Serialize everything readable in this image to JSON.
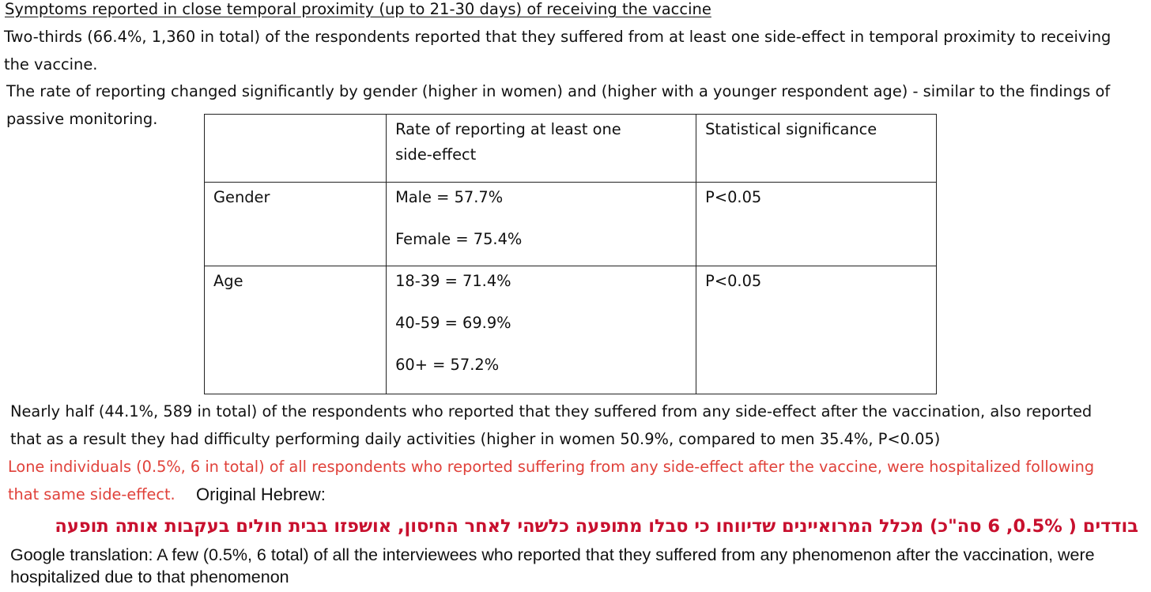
{
  "heading": "Symptoms reported in close temporal proximity (up to 21-30 days) of receiving the vaccine",
  "para1": {
    "line1": "Two-thirds (66.4%, 1,360 in total) of the respondents reported that they suffered from at least one side-effect in temporal proximity to receiving",
    "line2": "the vaccine."
  },
  "para2": {
    "line1": "The rate of reporting changed significantly by gender (higher in women) and (higher with a younger respondent age) - similar to the findings of",
    "line2": "passive monitoring."
  },
  "table": {
    "headers": [
      "",
      "Rate of reporting at least one side-effect",
      "Statistical significance"
    ],
    "header_rate_lines": [
      "Rate of reporting at least one",
      "side-effect"
    ],
    "rows": [
      {
        "label": "Gender",
        "rates": [
          "Male = 57.7%",
          "Female = 75.4%"
        ],
        "significance": "P<0.05"
      },
      {
        "label": "Age",
        "rates": [
          "18-39 = 71.4%",
          "40-59 = 69.9%",
          "60+ = 57.2%"
        ],
        "significance": "P<0.05"
      }
    ]
  },
  "para3": {
    "line1": "Nearly half (44.1%, 589 in total) of the respondents who reported that they suffered from any side-effect after the vaccination, also reported",
    "line2": "that as a result they had difficulty performing daily activities (higher in women 50.9%, compared to men 35.4%, P<0.05)"
  },
  "para4": {
    "line1": "Lone individuals (0.5%, 6 in total) of all respondents who reported suffering from any side-effect after the vaccine, were hospitalized following",
    "line2": "that same side-effect."
  },
  "original_label": "Original Hebrew:",
  "hebrew_text": "בודדים ( 0.5%, 6 סה\"כ) מכלל המרואיינים שדיווחו כי סבלו מתופעה כלשהי לאחר החיסון, אושפזו בבית חולים בעקבות אותה תופעה",
  "translation": "Google translation:  A few (0.5%, 6 total) of all the interviewees who reported that they suffered from any phenomenon after the vaccination, were hospitalized due to that phenomenon",
  "colors": {
    "text": "#111111",
    "highlight_red": "#e0413a",
    "hebrew_red": "#c8102e",
    "table_border": "#222222"
  }
}
